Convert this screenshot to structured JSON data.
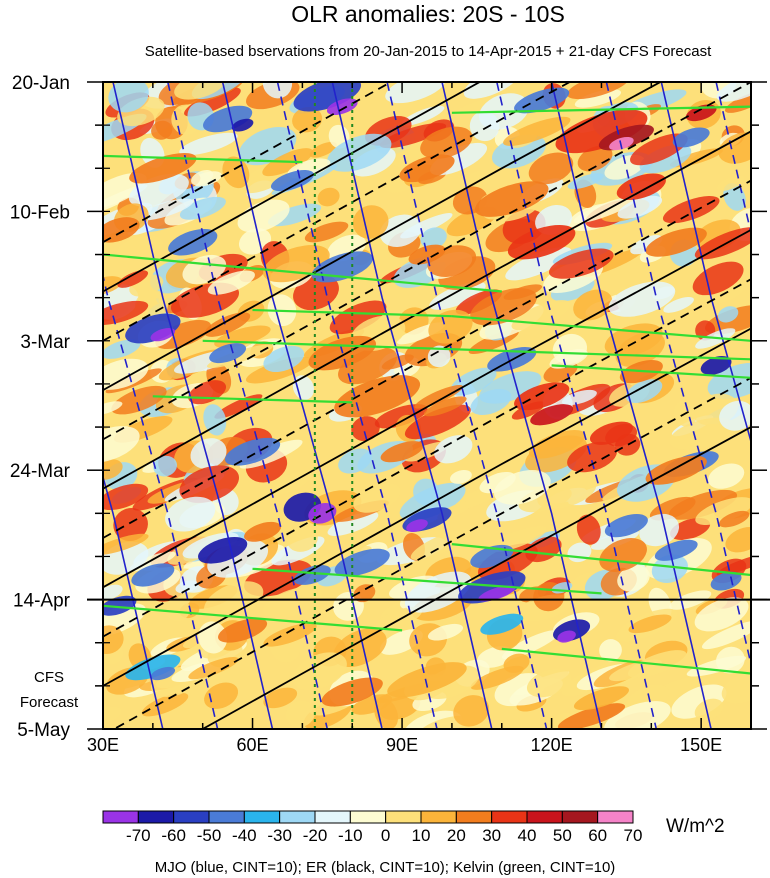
{
  "chart_data": {
    "type": "heatmap",
    "title": "OLR anomalies: 20S - 10S",
    "subtitle": "Satellite-based bservations from 20-Jan-2015 to 14-Apr-2015 + 21-day CFS Forecast",
    "x_axis": {
      "range": [
        30,
        160
      ],
      "ticks": [
        30,
        60,
        90,
        120,
        150
      ],
      "tick_labels": [
        "30E",
        "60E",
        "90E",
        "120E",
        "150E"
      ]
    },
    "y_axis": {
      "range_days": [
        0,
        105
      ],
      "ticks": [
        0,
        21,
        42,
        63,
        84,
        105
      ],
      "tick_labels": [
        "20-Jan",
        "10-Feb",
        "3-Mar",
        "24-Mar",
        "14-Apr",
        "5-May"
      ],
      "forecast_start_day": 84,
      "forecast_label_line1": "CFS",
      "forecast_label_line2": "Forecast"
    },
    "reference_lines_lon": [
      72.5,
      80
    ],
    "colorbar": {
      "levels": [
        "-70",
        "-60",
        "-50",
        "-40",
        "-30",
        "-20",
        "-10",
        "0",
        "10",
        "20",
        "30",
        "40",
        "50",
        "60",
        "70"
      ],
      "colors": [
        "#9a33e6",
        "#1c1aa8",
        "#2a3fc2",
        "#4a7bd6",
        "#2ab4ec",
        "#9ed8f5",
        "#e4f6fb",
        "#fdfcd2",
        "#fde07a",
        "#fbb43a",
        "#f27d1e",
        "#e93416",
        "#c9141c",
        "#a5171f",
        "#f583c8"
      ],
      "units": "W/m^2"
    },
    "legend_note": "MJO (blue, CINT=10); ER (black, CINT=10); Kelvin (green, CINT=10)"
  }
}
